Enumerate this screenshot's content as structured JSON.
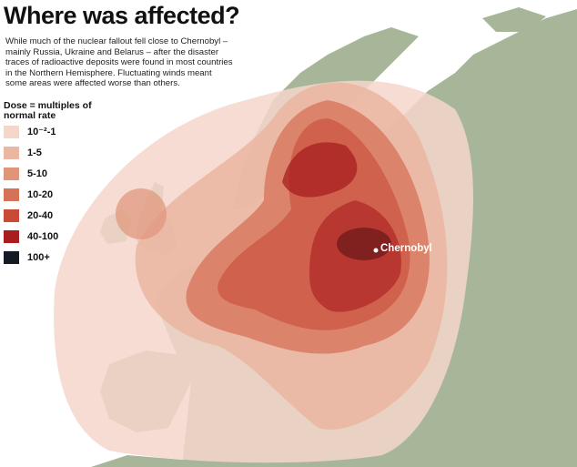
{
  "header": {
    "title": "Where was affected?",
    "description": "While much of the nuclear fallout fell close to Chernobyl – mainly Russia, Ukraine and Belarus – after the disaster traces of radioactive deposits were found in most countries in the Northern Hemisphere. Fluctuating winds meant some areas were affected worse than others."
  },
  "legend": {
    "title": "Dose = multiples of normal rate",
    "items": [
      {
        "label": "10⁻²-1",
        "color": "#f4d6ca"
      },
      {
        "label": "1-5",
        "color": "#ebb6a2"
      },
      {
        "label": "5-10",
        "color": "#e09479"
      },
      {
        "label": "10-20",
        "color": "#d57257"
      },
      {
        "label": "20-40",
        "color": "#c84a37"
      },
      {
        "label": "40-100",
        "color": "#a81d1f"
      },
      {
        "label": "100+",
        "color": "#161a22"
      }
    ]
  },
  "map": {
    "city_label": "Chernobyl"
  }
}
